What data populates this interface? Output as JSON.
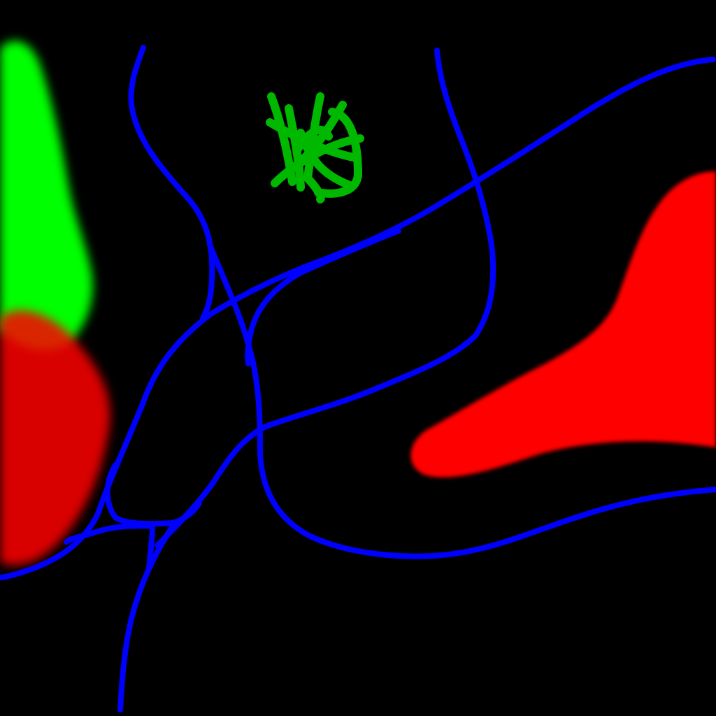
{
  "canvas": {
    "background": "#000000"
  },
  "legend_colors": {
    "line": "#0000ff",
    "green_region": "#00ff00",
    "red_region": "#ff0000",
    "scribble": "#00c800"
  },
  "layers": {
    "lines_label": "",
    "regions_label": ""
  }
}
